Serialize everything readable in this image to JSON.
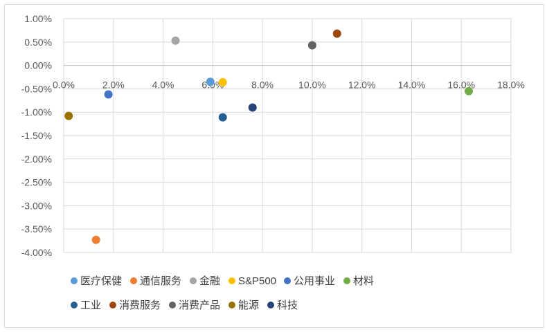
{
  "chart_data": {
    "type": "scatter",
    "title": "",
    "xlabel": "",
    "ylabel": "",
    "xlim": [
      0.0,
      18.0
    ],
    "ylim": [
      -4.0,
      1.0
    ],
    "x_ticks": [
      "0.0%",
      "2.0%",
      "4.0%",
      "6.0%",
      "8.0%",
      "10.0%",
      "12.0%",
      "14.0%",
      "16.0%",
      "18.0%"
    ],
    "x_tick_values": [
      0,
      2,
      4,
      6,
      8,
      10,
      12,
      14,
      16,
      18
    ],
    "y_ticks": [
      "1.00%",
      "0.50%",
      "0.00%",
      "-0.50%",
      "-1.00%",
      "-1.50%",
      "-2.00%",
      "-2.50%",
      "-3.00%",
      "-3.50%",
      "-4.00%"
    ],
    "y_tick_values": [
      1.0,
      0.5,
      0.0,
      -0.5,
      -1.0,
      -1.5,
      -2.0,
      -2.5,
      -3.0,
      -3.5,
      -4.0
    ],
    "grid": true,
    "legend_position": "bottom",
    "series": [
      {
        "name": "医疗保健",
        "color": "#5b9bd5",
        "x": 5.9,
        "y": -0.35
      },
      {
        "name": "通信服务",
        "color": "#ed7d31",
        "x": 1.3,
        "y": -3.73
      },
      {
        "name": "金融",
        "color": "#a5a5a5",
        "x": 4.5,
        "y": 0.53
      },
      {
        "name": "S&P500",
        "color": "#ffc000",
        "x": 6.4,
        "y": -0.36
      },
      {
        "name": "公用事业",
        "color": "#4472c4",
        "x": 1.8,
        "y": -0.62
      },
      {
        "name": "材料",
        "color": "#70ad47",
        "x": 16.3,
        "y": -0.55
      },
      {
        "name": "工业",
        "color": "#255e91",
        "x": 6.4,
        "y": -1.11
      },
      {
        "name": "消费服务",
        "color": "#9e480e",
        "x": 11.0,
        "y": 0.68
      },
      {
        "name": "消费产品",
        "color": "#636363",
        "x": 10.0,
        "y": 0.43
      },
      {
        "name": "能源",
        "color": "#997300",
        "x": 0.2,
        "y": -1.08
      },
      {
        "name": "科技",
        "color": "#264478",
        "x": 7.6,
        "y": -0.9
      }
    ]
  }
}
